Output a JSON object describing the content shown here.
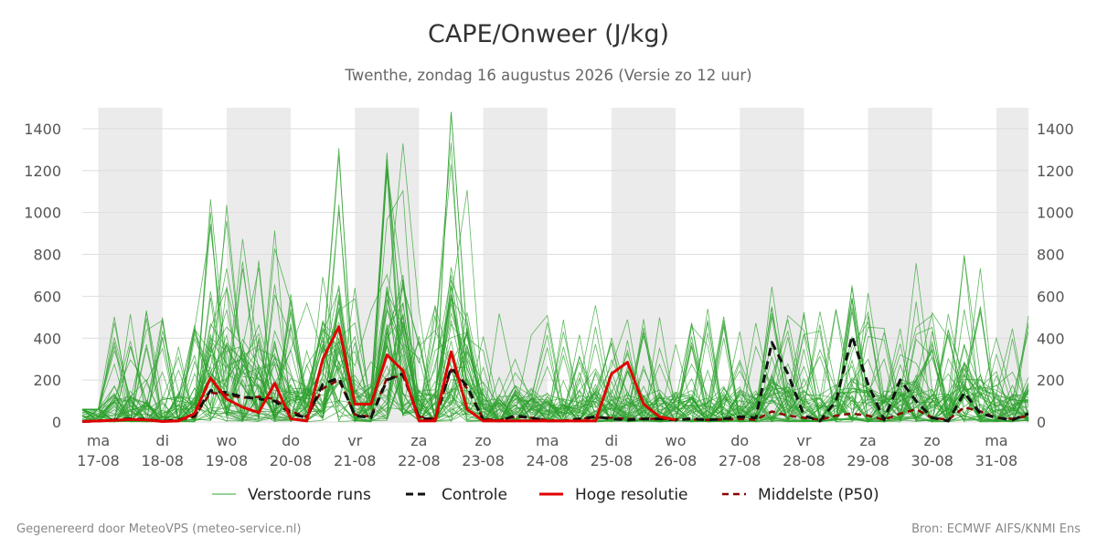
{
  "title": "CAPE/Onweer (J/kg)",
  "subtitle": "Twenthe, zondag 16 augustus 2026 (Versie zo 12 uur)",
  "footer": {
    "left": "Gegenereerd door MeteoVPS (meteo-service.nl)",
    "right": "Bron: ECMWF AIFS/KNMI Ens"
  },
  "colors": {
    "ensemble": "#2ca02c",
    "control": "#111111",
    "highres": "#e00000",
    "median": "#8b0000",
    "night_band": "#ebebeb",
    "grid": "#dddddd"
  },
  "chart_data": {
    "type": "line",
    "title": "CAPE/Onweer (J/kg)",
    "ylim": [
      0,
      1500
    ],
    "yticks": [
      0,
      200,
      400,
      600,
      800,
      1000,
      1200,
      1400
    ],
    "y_axis_right": true,
    "grid": true,
    "legend_position": "bottom",
    "x_unit": "days since 2026-08-17 00:00",
    "x_range": [
      -0.25,
      14.5
    ],
    "x_ticks": [
      {
        "x": 0,
        "day": "ma",
        "date": "17-08"
      },
      {
        "x": 1,
        "day": "di",
        "date": "18-08"
      },
      {
        "x": 2,
        "day": "wo",
        "date": "19-08"
      },
      {
        "x": 3,
        "day": "do",
        "date": "20-08"
      },
      {
        "x": 4,
        "day": "vr",
        "date": "21-08"
      },
      {
        "x": 5,
        "day": "za",
        "date": "22-08"
      },
      {
        "x": 6,
        "day": "zo",
        "date": "23-08"
      },
      {
        "x": 7,
        "day": "ma",
        "date": "24-08"
      },
      {
        "x": 8,
        "day": "di",
        "date": "25-08"
      },
      {
        "x": 9,
        "day": "wo",
        "date": "26-08"
      },
      {
        "x": 10,
        "day": "do",
        "date": "27-08"
      },
      {
        "x": 11,
        "day": "vr",
        "date": "28-08"
      },
      {
        "x": 12,
        "day": "za",
        "date": "29-08"
      },
      {
        "x": 13,
        "day": "zo",
        "date": "30-08"
      },
      {
        "x": 14,
        "day": "ma",
        "date": "31-08"
      }
    ],
    "shaded_ranges": [
      [
        0,
        1
      ],
      [
        2,
        3
      ],
      [
        4,
        5
      ],
      [
        6,
        7
      ],
      [
        8,
        9
      ],
      [
        10,
        11
      ],
      [
        12,
        13
      ],
      [
        14,
        14.5
      ]
    ],
    "ensemble_member_count": 50,
    "legend": [
      {
        "key": "ensemble",
        "label": "Verstoorde runs"
      },
      {
        "key": "control",
        "label": "Controle"
      },
      {
        "key": "highres",
        "label": "Hoge resolutie"
      },
      {
        "key": "median",
        "label": "Middelste (P50)"
      }
    ],
    "series": [
      {
        "name": "Hoge resolutie",
        "key": "highres",
        "x": [
          -0.25,
          0.0,
          0.25,
          0.5,
          0.75,
          1.0,
          1.25,
          1.5,
          1.75,
          2.0,
          2.25,
          2.5,
          2.75,
          3.0,
          3.25,
          3.5,
          3.75,
          4.0,
          4.25,
          4.5,
          4.75,
          5.0,
          5.25,
          5.5,
          5.75,
          6.0,
          6.25,
          6.5,
          6.75,
          7.0,
          7.25,
          7.5,
          7.75,
          8.0,
          8.25,
          8.5,
          8.75,
          9.0
        ],
        "values": [
          2,
          5,
          8,
          12,
          10,
          2,
          5,
          40,
          210,
          110,
          70,
          45,
          185,
          15,
          5,
          300,
          455,
          85,
          85,
          320,
          245,
          5,
          5,
          335,
          60,
          5,
          5,
          5,
          5,
          5,
          5,
          5,
          5,
          230,
          285,
          85,
          25,
          10
        ]
      },
      {
        "name": "Controle",
        "key": "control",
        "x": [
          -0.25,
          0.0,
          0.25,
          0.5,
          0.75,
          1.0,
          1.25,
          1.5,
          1.75,
          2.0,
          2.25,
          2.5,
          2.75,
          3.0,
          3.25,
          3.5,
          3.75,
          4.0,
          4.25,
          4.5,
          4.75,
          5.0,
          5.25,
          5.5,
          5.75,
          6.0,
          6.25,
          6.5,
          6.75,
          7.0,
          7.25,
          7.5,
          7.75,
          8.0,
          8.25,
          8.5,
          8.75,
          9.0,
          9.25,
          9.5,
          9.75,
          10.0,
          10.25,
          10.5,
          10.75,
          11.0,
          11.25,
          11.5,
          11.75,
          12.0,
          12.25,
          12.5,
          12.75,
          13.0,
          13.25,
          13.5,
          13.75,
          14.0,
          14.25,
          14.5
        ],
        "values": [
          2,
          5,
          10,
          15,
          12,
          3,
          10,
          30,
          150,
          140,
          120,
          110,
          100,
          40,
          20,
          180,
          210,
          30,
          20,
          200,
          230,
          20,
          10,
          260,
          170,
          10,
          5,
          30,
          20,
          5,
          5,
          15,
          25,
          15,
          10,
          15,
          15,
          10,
          15,
          10,
          15,
          25,
          20,
          380,
          230,
          30,
          5,
          100,
          410,
          180,
          10,
          200,
          100,
          20,
          5,
          140,
          40,
          20,
          10,
          40
        ]
      },
      {
        "name": "Middelste (P50)",
        "key": "median",
        "x": [
          -0.25,
          0.0,
          0.25,
          0.5,
          0.75,
          1.0,
          1.25,
          1.5,
          1.75,
          2.0,
          2.25,
          2.5,
          2.75,
          3.0,
          3.25,
          3.5,
          3.75,
          4.0,
          4.25,
          4.5,
          4.75,
          5.0,
          5.25,
          5.5,
          5.75,
          6.0,
          6.25,
          6.5,
          6.75,
          7.0,
          7.25,
          7.5,
          7.75,
          8.0,
          8.25,
          8.5,
          8.75,
          9.0,
          9.25,
          9.5,
          9.75,
          10.0,
          10.25,
          10.5,
          10.75,
          11.0,
          11.25,
          11.5,
          11.75,
          12.0,
          12.25,
          12.5,
          12.75,
          13.0,
          13.25,
          13.5,
          13.75,
          14.0,
          14.25,
          14.5
        ],
        "values": [
          2,
          5,
          8,
          12,
          10,
          3,
          8,
          25,
          140,
          130,
          115,
          120,
          110,
          50,
          25,
          160,
          200,
          35,
          25,
          210,
          220,
          25,
          15,
          250,
          160,
          15,
          8,
          25,
          20,
          8,
          5,
          15,
          20,
          20,
          15,
          15,
          15,
          12,
          12,
          10,
          12,
          15,
          10,
          50,
          30,
          20,
          10,
          30,
          40,
          30,
          10,
          40,
          60,
          20,
          10,
          70,
          50,
          20,
          15,
          30
        ]
      }
    ]
  }
}
